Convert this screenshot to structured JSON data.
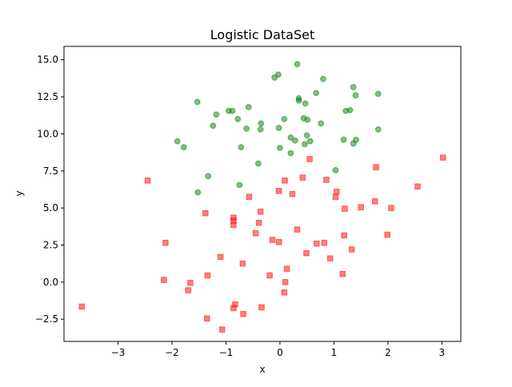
{
  "chart_data": {
    "type": "scatter",
    "title": "Logistic DataSet",
    "xlabel": "x",
    "ylabel": "y",
    "xlim": [
      -4.0,
      3.35
    ],
    "ylim": [
      -4.0,
      15.9
    ],
    "x_ticks": [
      -3,
      -2,
      -1,
      0,
      1,
      2,
      3
    ],
    "x_tick_labels": [
      "−3",
      "−2",
      "−1",
      "0",
      "1",
      "2",
      "3"
    ],
    "y_ticks": [
      -2.5,
      0.0,
      2.5,
      5.0,
      7.5,
      10.0,
      12.5,
      15.0
    ],
    "y_tick_labels": [
      "−2.5",
      "0.0",
      "2.5",
      "5.0",
      "7.5",
      "10.0",
      "12.5",
      "15.0"
    ],
    "grid": false,
    "series": [
      {
        "marker": "circle",
        "color": "#008000",
        "points": [
          [
            0.32,
            14.7
          ],
          [
            -0.03,
            14.0
          ],
          [
            -0.1,
            13.8
          ],
          [
            1.36,
            13.15
          ],
          [
            0.8,
            13.7
          ],
          [
            -1.53,
            12.15
          ],
          [
            0.67,
            12.75
          ],
          [
            0.35,
            12.4
          ],
          [
            1.82,
            12.7
          ],
          [
            1.4,
            12.6
          ],
          [
            0.35,
            12.25
          ],
          [
            0.47,
            12.05
          ],
          [
            -0.58,
            11.8
          ],
          [
            -0.95,
            11.55
          ],
          [
            -0.88,
            11.55
          ],
          [
            1.22,
            11.55
          ],
          [
            1.3,
            11.6
          ],
          [
            -1.18,
            11.3
          ],
          [
            -0.78,
            11.0
          ],
          [
            0.08,
            11.0
          ],
          [
            0.44,
            11.05
          ],
          [
            0.51,
            10.95
          ],
          [
            0.76,
            10.7
          ],
          [
            -1.24,
            10.55
          ],
          [
            -0.35,
            10.7
          ],
          [
            -0.62,
            10.35
          ],
          [
            -0.36,
            10.3
          ],
          [
            -0.02,
            10.4
          ],
          [
            1.82,
            10.3
          ],
          [
            0.5,
            9.9
          ],
          [
            -1.9,
            9.5
          ],
          [
            0.2,
            9.75
          ],
          [
            0.28,
            9.55
          ],
          [
            0.56,
            9.5
          ],
          [
            1.18,
            9.6
          ],
          [
            1.41,
            9.6
          ],
          [
            1.36,
            9.35
          ],
          [
            0.46,
            9.3
          ],
          [
            -0.72,
            9.1
          ],
          [
            -1.78,
            9.1
          ],
          [
            0.0,
            9.05
          ],
          [
            0.2,
            8.7
          ],
          [
            -0.4,
            8.0
          ],
          [
            1.03,
            7.55
          ],
          [
            -1.33,
            7.15
          ],
          [
            -0.75,
            6.55
          ],
          [
            -1.52,
            6.05
          ]
        ]
      },
      {
        "marker": "square",
        "color": "#ff0000",
        "points": [
          [
            3.02,
            8.4
          ],
          [
            1.78,
            7.75
          ],
          [
            0.55,
            8.3
          ],
          [
            -2.45,
            6.85
          ],
          [
            0.42,
            7.05
          ],
          [
            0.09,
            6.85
          ],
          [
            0.86,
            6.9
          ],
          [
            2.55,
            6.45
          ],
          [
            -0.02,
            6.15
          ],
          [
            1.05,
            6.1
          ],
          [
            0.23,
            5.95
          ],
          [
            1.03,
            5.75
          ],
          [
            -0.57,
            5.75
          ],
          [
            1.76,
            5.45
          ],
          [
            1.2,
            4.95
          ],
          [
            1.5,
            5.05
          ],
          [
            2.06,
            5.0
          ],
          [
            -1.38,
            4.65
          ],
          [
            -0.36,
            4.75
          ],
          [
            -0.86,
            4.35
          ],
          [
            -0.86,
            4.15
          ],
          [
            -0.86,
            3.85
          ],
          [
            -0.39,
            4.0
          ],
          [
            0.32,
            3.55
          ],
          [
            -0.45,
            3.3
          ],
          [
            1.19,
            3.15
          ],
          [
            1.99,
            3.2
          ],
          [
            -0.14,
            2.85
          ],
          [
            -0.02,
            2.7
          ],
          [
            -2.12,
            2.65
          ],
          [
            0.82,
            2.65
          ],
          [
            0.68,
            2.6
          ],
          [
            1.33,
            2.2
          ],
          [
            0.49,
            1.95
          ],
          [
            -1.1,
            1.7
          ],
          [
            0.93,
            1.6
          ],
          [
            -0.69,
            1.25
          ],
          [
            0.13,
            0.9
          ],
          [
            1.16,
            0.55
          ],
          [
            -1.34,
            0.45
          ],
          [
            -0.19,
            0.45
          ],
          [
            -2.15,
            0.15
          ],
          [
            0.1,
            0.0
          ],
          [
            -1.66,
            -0.05
          ],
          [
            -1.7,
            -0.55
          ],
          [
            0.08,
            -0.7
          ],
          [
            -0.83,
            -1.5
          ],
          [
            -0.86,
            -1.75
          ],
          [
            -3.67,
            -1.65
          ],
          [
            -0.34,
            -1.7
          ],
          [
            -0.68,
            -2.15
          ],
          [
            -1.35,
            -2.45
          ],
          [
            -1.07,
            -3.2
          ]
        ]
      }
    ]
  }
}
